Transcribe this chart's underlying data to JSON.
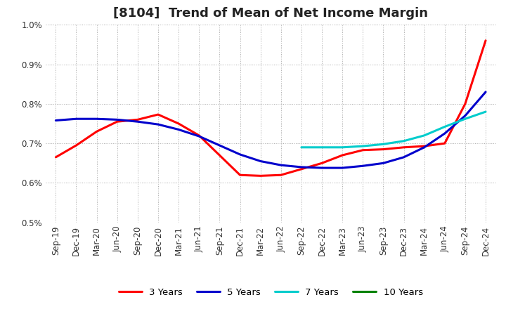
{
  "title": "[8104]  Trend of Mean of Net Income Margin",
  "ylim": [
    0.005,
    0.01
  ],
  "yticks": [
    0.005,
    0.006,
    0.007,
    0.008,
    0.009,
    0.01
  ],
  "ytick_labels": [
    "0.5%",
    "0.6%",
    "0.7%",
    "0.8%",
    "0.9%",
    "1.0%"
  ],
  "x_labels": [
    "Sep-19",
    "Dec-19",
    "Mar-20",
    "Jun-20",
    "Sep-20",
    "Dec-20",
    "Mar-21",
    "Jun-21",
    "Sep-21",
    "Dec-21",
    "Mar-22",
    "Jun-22",
    "Sep-22",
    "Dec-22",
    "Mar-23",
    "Jun-23",
    "Sep-23",
    "Dec-23",
    "Mar-24",
    "Jun-24",
    "Sep-24",
    "Dec-24"
  ],
  "series": {
    "3 Years": {
      "color": "#ff0000",
      "values": [
        0.00665,
        0.00695,
        0.0073,
        0.00755,
        0.0076,
        0.00773,
        0.0075,
        0.0072,
        0.0067,
        0.0062,
        0.00618,
        0.0062,
        0.00635,
        0.0065,
        0.0067,
        0.00683,
        0.00685,
        0.0069,
        0.00693,
        0.007,
        0.008,
        0.0096
      ]
    },
    "5 Years": {
      "color": "#0000cc",
      "values": [
        0.00758,
        0.00762,
        0.00762,
        0.0076,
        0.00755,
        0.00748,
        0.00735,
        0.00718,
        0.00695,
        0.00672,
        0.00655,
        0.00645,
        0.0064,
        0.00638,
        0.00638,
        0.00643,
        0.0065,
        0.00665,
        0.0069,
        0.00725,
        0.0077,
        0.0083
      ]
    },
    "7 Years": {
      "color": "#00cccc",
      "values": [
        null,
        null,
        null,
        null,
        null,
        null,
        null,
        null,
        null,
        null,
        null,
        null,
        0.0069,
        0.0069,
        0.0069,
        0.00693,
        0.00698,
        0.00706,
        0.0072,
        0.00742,
        0.00762,
        0.0078
      ]
    },
    "10 Years": {
      "color": "#008000",
      "values": [
        null,
        null,
        null,
        null,
        null,
        null,
        null,
        null,
        null,
        null,
        null,
        null,
        null,
        null,
        null,
        null,
        null,
        null,
        null,
        null,
        null,
        null
      ]
    }
  },
  "background_color": "#ffffff",
  "grid_color": "#aaaaaa",
  "title_fontsize": 13,
  "tick_fontsize": 8.5
}
